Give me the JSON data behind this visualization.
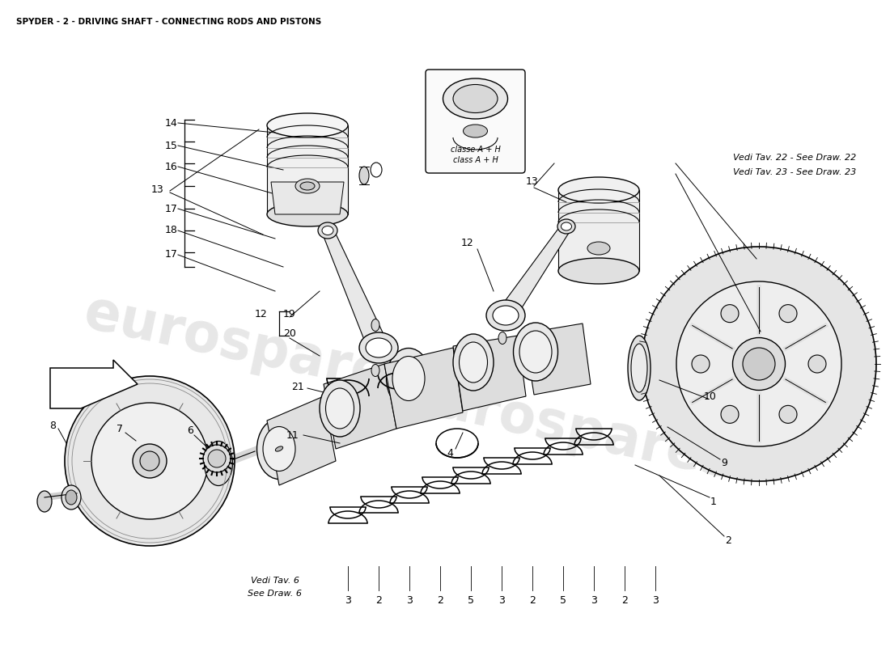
{
  "title": "SPYDER - 2 - DRIVING SHAFT - CONNECTING RODS AND PISTONS",
  "title_fontsize": 7.5,
  "bg_color": "#ffffff",
  "watermark_text": "eurospares",
  "watermark_color": "#d8d8d8",
  "ref_text_1": "Vedi Tav. 22 - See Draw. 22",
  "ref_text_2": "Vedi Tav. 23 - See Draw. 23",
  "ref_text_3": "Vedi Tav. 6",
  "ref_text_4": "See Draw. 6",
  "class_text_1": "classe A + H",
  "class_text_2": "class A + H",
  "figsize": [
    11.0,
    8.0
  ],
  "dpi": 100
}
